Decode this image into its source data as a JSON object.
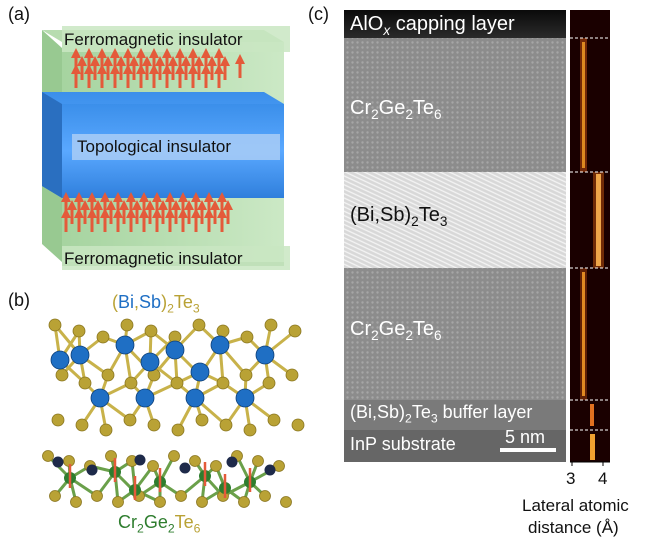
{
  "panels": {
    "a": {
      "label": "(a)",
      "top_layer": "Ferromagnetic insulator",
      "middle_layer": "Topological insulator",
      "bottom_layer": "Ferromagnetic insulator"
    },
    "b": {
      "label": "(b)",
      "ti_formula": {
        "open": "(",
        "bi": "Bi",
        "comma": ",",
        "sb": "Sb",
        "close": ")",
        "sub": "2",
        "te": "Te",
        "te_sub": "3"
      },
      "cgt_formula": {
        "cr": "Cr",
        "cr_sub": "2",
        "ge": "Ge",
        "ge_sub": "2",
        "te": "Te",
        "te_sub": "6"
      }
    },
    "c": {
      "label": "(c)",
      "capping": {
        "main": "AlO",
        "sub": "x",
        "rest": " capping layer"
      },
      "cgt_top": {
        "a": "Cr",
        "a_sub": "2",
        "b": "Ge",
        "b_sub": "2",
        "c": "Te",
        "c_sub": "6"
      },
      "ti": {
        "a": "(Bi,Sb)",
        "a_sub": "2",
        "b": "Te",
        "b_sub": "3"
      },
      "cgt_bottom": {
        "a": "Cr",
        "a_sub": "2",
        "b": "Ge",
        "b_sub": "2",
        "c": "Te",
        "c_sub": "6"
      },
      "buffer": {
        "a": "(Bi,Sb)",
        "a_sub": "2",
        "b": "Te",
        "b_sub": "3",
        "rest": " buffer layer"
      },
      "substrate": "InP substrate",
      "scale_bar": "5 nm",
      "axis_ticks": [
        "3",
        "4"
      ],
      "axis_label_line1": "Lateral atomic",
      "axis_label_line2": "distance (Å)"
    }
  },
  "colors": {
    "bi": "#1f6fc4",
    "te": "#b9a235",
    "cr": "#2e7d2e",
    "ge": "#1e2a4a",
    "arrow": "#e45a3a",
    "green_layer": "#a9d7a2",
    "blue_layer": "#3a8fe8"
  }
}
